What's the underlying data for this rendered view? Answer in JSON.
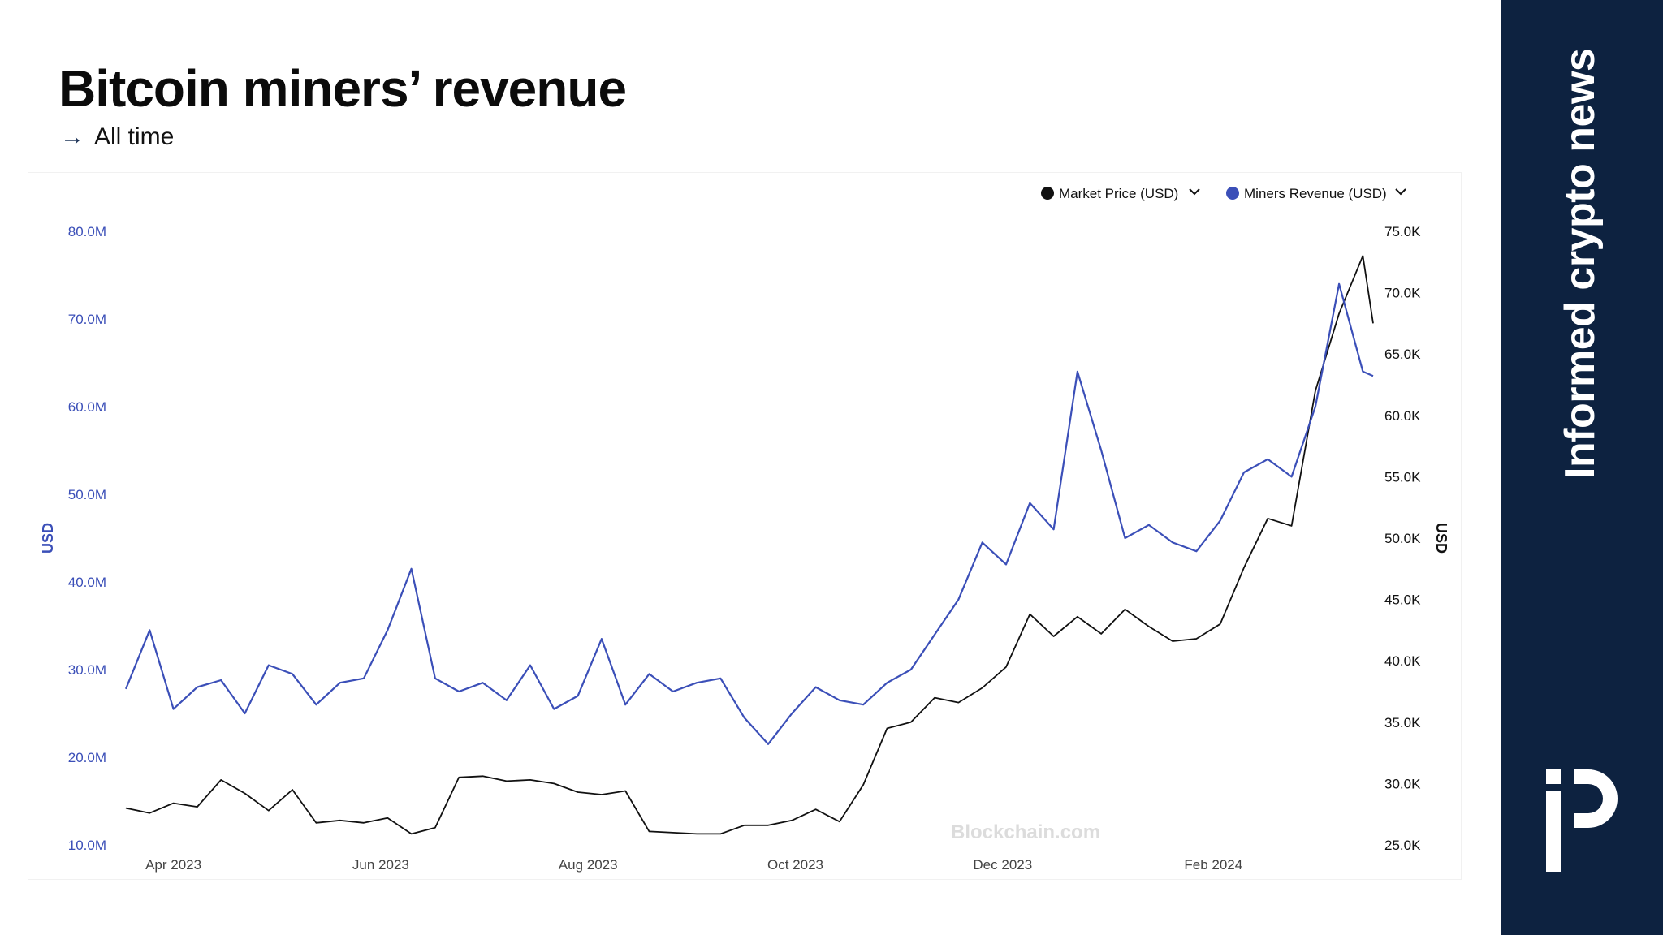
{
  "header": {
    "title": "Bitcoin miners’ revenue",
    "subtitle": "All time",
    "arrow_icon": "arrow-right-icon"
  },
  "sidebar": {
    "tagline": "Informed crypto news",
    "logo_icon": "brand-logo-icon",
    "background": "#0d2240"
  },
  "watermark": "Blockchain.com",
  "chart_data": {
    "type": "line",
    "legend": {
      "placement": "top-right",
      "items": [
        "Market Price (USD)",
        "Miners Revenue (USD)"
      ]
    },
    "y_left": {
      "label": "USD",
      "ticks": [
        "80.0M",
        "70.0M",
        "60.0M",
        "50.0M",
        "40.0M",
        "30.0M",
        "20.0M",
        "10.0M"
      ],
      "range": [
        10,
        80
      ],
      "unit": "M",
      "color": "#3b4fb8"
    },
    "y_right": {
      "label": "USD",
      "ticks": [
        "75.0K",
        "70.0K",
        "65.0K",
        "60.0K",
        "55.0K",
        "50.0K",
        "45.0K",
        "40.0K",
        "35.0K",
        "30.0K",
        "25.0K"
      ],
      "range": [
        25,
        75
      ],
      "unit": "K",
      "color": "#111111"
    },
    "x_axis": {
      "ticks": [
        "Apr 2023",
        "Jun 2023",
        "Aug 2023",
        "Oct 2023",
        "Dec 2023",
        "Feb 2024"
      ],
      "tick_dates": [
        "2023-04-01",
        "2023-06-01",
        "2023-08-01",
        "2023-10-01",
        "2023-12-01",
        "2024-02-01"
      ],
      "range": [
        "2023-03-18",
        "2024-03-19"
      ]
    },
    "series": [
      {
        "name": "Miners Revenue (USD)",
        "axis": "left",
        "unit": "M",
        "color": "#3b4fb8",
        "points": [
          [
            "2023-03-18",
            27.8
          ],
          [
            "2023-03-25",
            34.5
          ],
          [
            "2023-04-01",
            25.5
          ],
          [
            "2023-04-08",
            28.0
          ],
          [
            "2023-04-15",
            28.8
          ],
          [
            "2023-04-22",
            25.0
          ],
          [
            "2023-04-29",
            30.5
          ],
          [
            "2023-05-06",
            29.5
          ],
          [
            "2023-05-13",
            26.0
          ],
          [
            "2023-05-20",
            28.5
          ],
          [
            "2023-05-27",
            29.0
          ],
          [
            "2023-06-03",
            34.5
          ],
          [
            "2023-06-10",
            41.5
          ],
          [
            "2023-06-17",
            29.0
          ],
          [
            "2023-06-24",
            27.5
          ],
          [
            "2023-07-01",
            28.5
          ],
          [
            "2023-07-08",
            26.5
          ],
          [
            "2023-07-15",
            30.5
          ],
          [
            "2023-07-22",
            25.5
          ],
          [
            "2023-07-29",
            27.0
          ],
          [
            "2023-08-05",
            33.5
          ],
          [
            "2023-08-12",
            26.0
          ],
          [
            "2023-08-19",
            29.5
          ],
          [
            "2023-08-26",
            27.5
          ],
          [
            "2023-09-02",
            28.5
          ],
          [
            "2023-09-09",
            29.0
          ],
          [
            "2023-09-16",
            24.5
          ],
          [
            "2023-09-23",
            21.5
          ],
          [
            "2023-09-30",
            25.0
          ],
          [
            "2023-10-07",
            28.0
          ],
          [
            "2023-10-14",
            26.5
          ],
          [
            "2023-10-21",
            26.0
          ],
          [
            "2023-10-28",
            28.5
          ],
          [
            "2023-11-04",
            30.0
          ],
          [
            "2023-11-11",
            34.0
          ],
          [
            "2023-11-18",
            38.0
          ],
          [
            "2023-11-25",
            44.5
          ],
          [
            "2023-12-02",
            42.0
          ],
          [
            "2023-12-09",
            49.0
          ],
          [
            "2023-12-16",
            46.0
          ],
          [
            "2023-12-23",
            64.0
          ],
          [
            "2023-12-30",
            55.0
          ],
          [
            "2024-01-06",
            45.0
          ],
          [
            "2024-01-13",
            46.5
          ],
          [
            "2024-01-20",
            44.5
          ],
          [
            "2024-01-27",
            43.5
          ],
          [
            "2024-02-03",
            47.0
          ],
          [
            "2024-02-10",
            52.5
          ],
          [
            "2024-02-17",
            54.0
          ],
          [
            "2024-02-24",
            52.0
          ],
          [
            "2024-03-02",
            60.0
          ],
          [
            "2024-03-09",
            74.0
          ],
          [
            "2024-03-16",
            64.0
          ],
          [
            "2024-03-19",
            63.5
          ]
        ]
      },
      {
        "name": "Market Price (USD)",
        "axis": "right",
        "unit": "K",
        "color": "#111111",
        "points": [
          [
            "2023-03-18",
            28.0
          ],
          [
            "2023-03-25",
            27.6
          ],
          [
            "2023-04-01",
            28.4
          ],
          [
            "2023-04-08",
            28.1
          ],
          [
            "2023-04-15",
            30.3
          ],
          [
            "2023-04-22",
            29.2
          ],
          [
            "2023-04-29",
            27.8
          ],
          [
            "2023-05-06",
            29.5
          ],
          [
            "2023-05-13",
            26.8
          ],
          [
            "2023-05-20",
            27.0
          ],
          [
            "2023-05-27",
            26.8
          ],
          [
            "2023-06-03",
            27.2
          ],
          [
            "2023-06-10",
            25.9
          ],
          [
            "2023-06-17",
            26.4
          ],
          [
            "2023-06-24",
            30.5
          ],
          [
            "2023-07-01",
            30.6
          ],
          [
            "2023-07-08",
            30.2
          ],
          [
            "2023-07-15",
            30.3
          ],
          [
            "2023-07-22",
            30.0
          ],
          [
            "2023-07-29",
            29.3
          ],
          [
            "2023-08-05",
            29.1
          ],
          [
            "2023-08-12",
            29.4
          ],
          [
            "2023-08-19",
            26.1
          ],
          [
            "2023-08-26",
            26.0
          ],
          [
            "2023-09-02",
            25.9
          ],
          [
            "2023-09-09",
            25.9
          ],
          [
            "2023-09-16",
            26.6
          ],
          [
            "2023-09-23",
            26.6
          ],
          [
            "2023-09-30",
            27.0
          ],
          [
            "2023-10-07",
            27.9
          ],
          [
            "2023-10-14",
            26.9
          ],
          [
            "2023-10-21",
            29.9
          ],
          [
            "2023-10-28",
            34.5
          ],
          [
            "2023-11-04",
            35.0
          ],
          [
            "2023-11-11",
            37.0
          ],
          [
            "2023-11-18",
            36.6
          ],
          [
            "2023-11-25",
            37.8
          ],
          [
            "2023-12-02",
            39.5
          ],
          [
            "2023-12-09",
            43.8
          ],
          [
            "2023-12-16",
            42.0
          ],
          [
            "2023-12-23",
            43.6
          ],
          [
            "2023-12-30",
            42.2
          ],
          [
            "2024-01-06",
            44.2
          ],
          [
            "2024-01-13",
            42.8
          ],
          [
            "2024-01-20",
            41.6
          ],
          [
            "2024-01-27",
            41.8
          ],
          [
            "2024-02-03",
            43.0
          ],
          [
            "2024-02-10",
            47.6
          ],
          [
            "2024-02-17",
            51.6
          ],
          [
            "2024-02-24",
            51.0
          ],
          [
            "2024-03-02",
            62.0
          ],
          [
            "2024-03-09",
            68.3
          ],
          [
            "2024-03-16",
            73.0
          ],
          [
            "2024-03-19",
            67.5
          ]
        ]
      }
    ]
  }
}
